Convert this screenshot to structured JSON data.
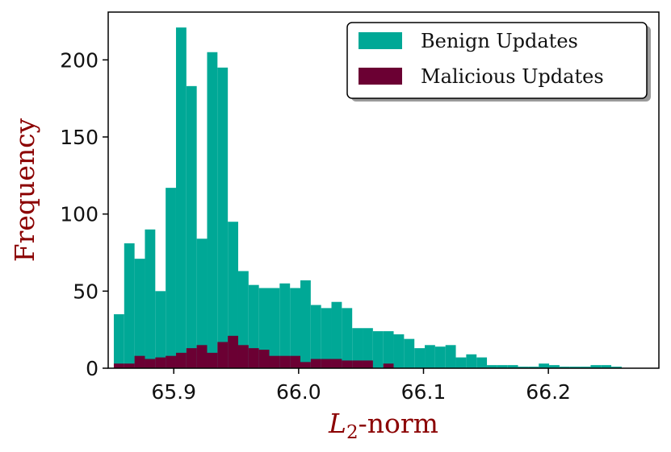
{
  "chart_data": {
    "type": "bar",
    "xlabel_main": "L",
    "xlabel_sub": "2",
    "xlabel_suffix": "-norm",
    "ylabel": "Frequency",
    "xlim": [
      65.8475,
      66.2885
    ],
    "ylim": [
      0,
      231
    ],
    "xticks": [
      65.9,
      66.0,
      66.1,
      66.2
    ],
    "xtick_labels": [
      "65.9",
      "66.0",
      "66.1",
      "66.2"
    ],
    "yticks": [
      0,
      50,
      100,
      150,
      200
    ],
    "ytick_labels": [
      "0",
      "50",
      "100",
      "150",
      "200"
    ],
    "grid": false,
    "legend_position": "top-right",
    "series": [
      {
        "name": "Benign Updates",
        "color": "#00a896",
        "bin_start": 65.852,
        "bin_width": 0.0083,
        "values": [
          35,
          81,
          71,
          90,
          50,
          117,
          221,
          183,
          84,
          205,
          195,
          95,
          63,
          54,
          52,
          52,
          55,
          52,
          57,
          41,
          39,
          43,
          39,
          26,
          26,
          24,
          24,
          22,
          19,
          13,
          15,
          14,
          15,
          7,
          9,
          7,
          2,
          2,
          2,
          1,
          1,
          3,
          2,
          1,
          1,
          1,
          2,
          2,
          1
        ]
      },
      {
        "name": "Malicious Updates",
        "color": "#6b0033",
        "bin_start": 65.852,
        "bin_width": 0.0083,
        "values": [
          3,
          3,
          8,
          6,
          7,
          8,
          10,
          13,
          15,
          10,
          17,
          21,
          15,
          13,
          12,
          8,
          8,
          8,
          4,
          6,
          6,
          6,
          5,
          5,
          5,
          0,
          3
        ]
      }
    ]
  }
}
